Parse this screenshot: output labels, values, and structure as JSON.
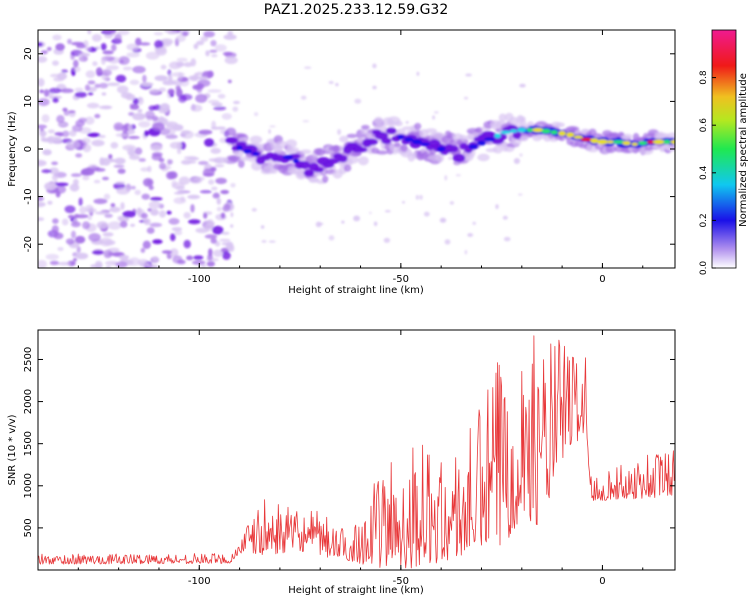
{
  "title": "PAZ1.2025.233.12.59.G32",
  "colors": {
    "snr_line": "#e8383a",
    "spec_light": "#d8c4f2",
    "spec_mid": "#a46ee6",
    "spec_dark": "#6a12e0",
    "spec_blue": "#1a10e8",
    "spec_cyan": "#22d8e6",
    "spec_green": "#2ae66a",
    "spec_yellow": "#e8e020",
    "spec_red": "#e81a10"
  },
  "chart_data": [
    {
      "type": "heatmap",
      "xlabel": "Height of straight line (km)",
      "ylabel": "Frequency (Hz)",
      "xlim": [
        -140,
        18
      ],
      "ylim": [
        -25,
        25
      ],
      "xticks": [
        -100,
        -50,
        0
      ],
      "yticks": [
        -20,
        -10,
        0,
        10,
        20
      ],
      "ridge": [
        {
          "x": -92,
          "f": 1.0,
          "a": 0.3
        },
        {
          "x": -88,
          "f": -0.5,
          "a": 0.35
        },
        {
          "x": -84,
          "f": -1.5,
          "a": 0.3
        },
        {
          "x": -80,
          "f": -1.0,
          "a": 0.25
        },
        {
          "x": -76,
          "f": -2.5,
          "a": 0.3
        },
        {
          "x": -72,
          "f": -4.5,
          "a": 0.2
        },
        {
          "x": -68,
          "f": -3.0,
          "a": 0.15
        },
        {
          "x": -64,
          "f": -1.0,
          "a": 0.15
        },
        {
          "x": -60,
          "f": 0.5,
          "a": 0.2
        },
        {
          "x": -56,
          "f": 2.5,
          "a": 0.25
        },
        {
          "x": -52,
          "f": 3.0,
          "a": 0.3
        },
        {
          "x": -48,
          "f": 2.0,
          "a": 0.35
        },
        {
          "x": -44,
          "f": 1.0,
          "a": 0.3
        },
        {
          "x": -40,
          "f": 0.0,
          "a": 0.3
        },
        {
          "x": -36,
          "f": -1.0,
          "a": 0.25
        },
        {
          "x": -32,
          "f": 0.5,
          "a": 0.3
        },
        {
          "x": -28,
          "f": 2.0,
          "a": 0.4
        },
        {
          "x": -24,
          "f": 3.5,
          "a": 0.5
        },
        {
          "x": -20,
          "f": 4.0,
          "a": 0.65
        },
        {
          "x": -16,
          "f": 4.0,
          "a": 0.75
        },
        {
          "x": -12,
          "f": 3.5,
          "a": 0.8
        },
        {
          "x": -8,
          "f": 3.0,
          "a": 0.85
        },
        {
          "x": -4,
          "f": 2.0,
          "a": 0.9
        },
        {
          "x": 0,
          "f": 1.5,
          "a": 0.95
        },
        {
          "x": 4,
          "f": 1.5,
          "a": 0.85
        },
        {
          "x": 8,
          "f": 1.0,
          "a": 0.9
        },
        {
          "x": 12,
          "f": 1.5,
          "a": 0.85
        },
        {
          "x": 16,
          "f": 1.5,
          "a": 0.8
        }
      ],
      "colorbar": {
        "label": "Normalized spectral amplitude",
        "range": [
          0,
          1
        ],
        "ticks": [
          "0.0",
          "0.2",
          "0.4",
          "0.6",
          "0.8"
        ]
      }
    },
    {
      "type": "line",
      "xlabel": "Height of straight line (km)",
      "ylabel": "SNR (10 * v/v)",
      "xlim": [
        -140,
        18
      ],
      "ylim": [
        0,
        2850
      ],
      "xticks": [
        -100,
        -50,
        0
      ],
      "yticks": [
        500,
        1000,
        1500,
        2000,
        2500
      ],
      "envelope": [
        {
          "x": -140,
          "base": 100,
          "amp": 90
        },
        {
          "x": -92,
          "base": 110,
          "amp": 90
        },
        {
          "x": -90,
          "base": 250,
          "amp": 150
        },
        {
          "x": -84,
          "base": 350,
          "amp": 500
        },
        {
          "x": -75,
          "base": 350,
          "amp": 350
        },
        {
          "x": -70,
          "base": 300,
          "amp": 400
        },
        {
          "x": -63,
          "base": 200,
          "amp": 250
        },
        {
          "x": -60,
          "base": 250,
          "amp": 500
        },
        {
          "x": -50,
          "base": 400,
          "amp": 1200
        },
        {
          "x": -45,
          "base": 450,
          "amp": 1100
        },
        {
          "x": -40,
          "base": 400,
          "amp": 900
        },
        {
          "x": -35,
          "base": 500,
          "amp": 1000
        },
        {
          "x": -30,
          "base": 700,
          "amp": 1300
        },
        {
          "x": -25,
          "base": 900,
          "amp": 1900
        },
        {
          "x": -20,
          "base": 1200,
          "amp": 1600
        },
        {
          "x": -15,
          "base": 1100,
          "amp": 1700
        },
        {
          "x": -10,
          "base": 1700,
          "amp": 1100
        },
        {
          "x": -4,
          "base": 1900,
          "amp": 700
        },
        {
          "x": -3,
          "base": 900,
          "amp": 250
        },
        {
          "x": 5,
          "base": 950,
          "amp": 300
        },
        {
          "x": 12,
          "base": 1000,
          "amp": 450
        },
        {
          "x": 18,
          "base": 1050,
          "amp": 450
        }
      ]
    }
  ]
}
